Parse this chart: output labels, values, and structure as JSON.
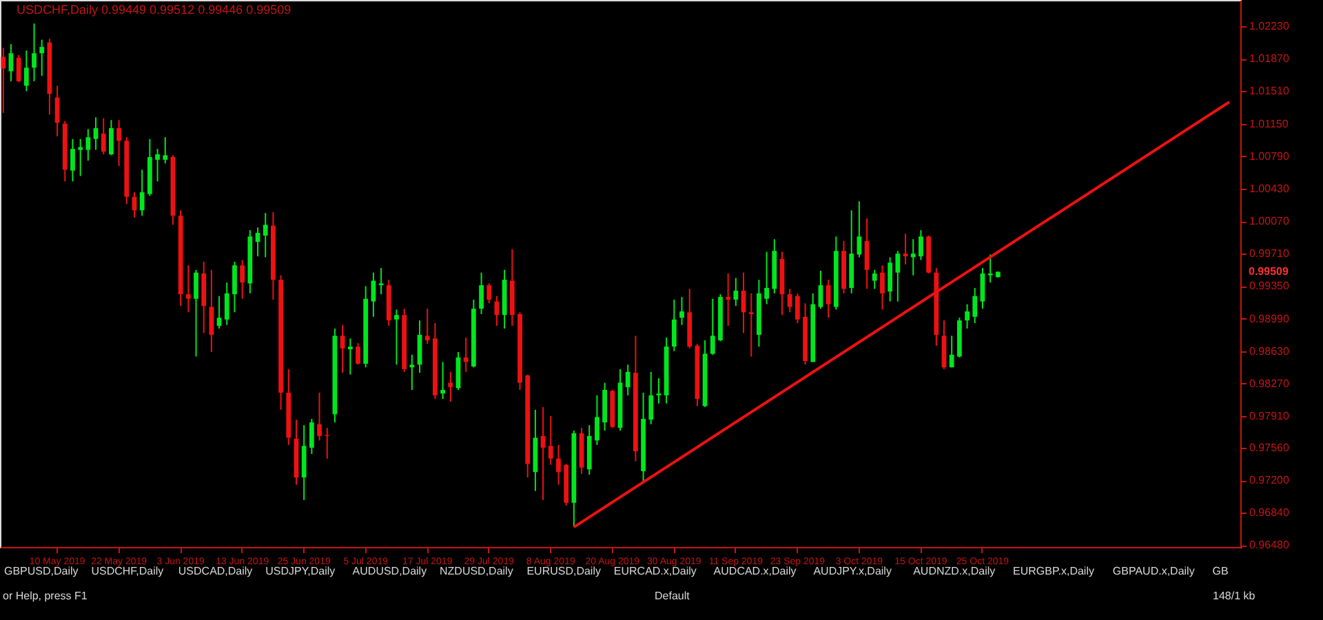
{
  "chart_data": {
    "type": "candlestick",
    "title": "USDCHF,Daily  0.99449 0.99512 0.99446 0.99509",
    "categories": [
      null,
      null,
      null,
      null,
      null,
      null,
      null,
      "10 May 2019",
      null,
      null,
      null,
      null,
      null,
      null,
      null,
      "22 May 2019",
      null,
      null,
      null,
      null,
      null,
      null,
      null,
      "3 Jun 2019",
      null,
      null,
      null,
      null,
      null,
      null,
      null,
      "13 Jun 2019",
      null,
      null,
      null,
      null,
      null,
      null,
      null,
      "25 Jun 2019",
      null,
      null,
      null,
      null,
      null,
      null,
      null,
      "5 Jul 2019",
      null,
      null,
      null,
      null,
      null,
      null,
      null,
      "17 Jul 2019",
      null,
      null,
      null,
      null,
      null,
      null,
      null,
      "29 Jul 2019",
      null,
      null,
      null,
      null,
      null,
      null,
      null,
      "8 Aug 2019",
      null,
      null,
      null,
      null,
      null,
      null,
      null,
      "20 Aug 2019",
      null,
      null,
      null,
      null,
      null,
      null,
      null,
      "30 Aug 2019",
      null,
      null,
      null,
      null,
      null,
      null,
      null,
      "11 Sep 2019",
      null,
      null,
      null,
      null,
      null,
      null,
      null,
      "23 Sep 2019",
      null,
      null,
      null,
      null,
      null,
      null,
      null,
      "3 Oct 2019",
      null,
      null,
      null,
      null,
      null,
      null,
      null,
      "15 Oct 2019",
      null,
      null,
      null,
      null,
      null,
      null,
      null,
      "25 Oct 2019",
      null,
      null,
      null,
      null,
      null,
      null,
      null,
      null,
      null,
      null,
      null,
      null,
      null,
      null,
      null,
      null,
      null,
      null,
      null,
      null,
      null,
      null,
      null,
      null,
      null,
      null,
      null,
      null,
      null,
      null,
      null,
      null,
      null
    ],
    "ohlc": [
      [
        1.0189,
        1.0199,
        1.0127,
        1.0176
      ],
      [
        1.0173,
        1.0203,
        1.0162,
        1.0193
      ],
      [
        1.0188,
        1.0191,
        1.0161,
        1.0162
      ],
      [
        1.0157,
        1.0196,
        1.0151,
        1.0177
      ],
      [
        1.0177,
        1.0226,
        1.0162,
        1.0193
      ],
      [
        1.0193,
        1.0208,
        1.0168,
        1.02
      ],
      [
        1.0205,
        1.0209,
        1.0125,
        1.0148
      ],
      [
        1.0144,
        1.0157,
        1.0101,
        1.0116
      ],
      [
        1.0115,
        1.0118,
        1.0051,
        1.0064
      ],
      [
        1.0063,
        1.0098,
        1.0051,
        1.0087
      ],
      [
        1.0086,
        1.0098,
        1.0057,
        1.0089
      ],
      [
        1.0086,
        1.0109,
        1.0074,
        1.01
      ],
      [
        1.0098,
        1.0122,
        1.0086,
        1.011
      ],
      [
        1.0104,
        1.0121,
        1.0081,
        1.0084
      ],
      [
        1.0081,
        1.0119,
        1.008,
        1.011
      ],
      [
        1.011,
        1.0119,
        1.0068,
        1.0096
      ],
      [
        1.0096,
        1.01,
        1.0026,
        1.0034
      ],
      [
        1.0034,
        1.0039,
        1.0011,
        1.0019
      ],
      [
        1.0019,
        1.0064,
        1.0013,
        1.0039
      ],
      [
        1.0037,
        1.0098,
        1.0035,
        1.0078
      ],
      [
        1.0075,
        1.0087,
        1.0051,
        1.0081
      ],
      [
        1.0075,
        1.01,
        1.0071,
        1.008
      ],
      [
        1.0078,
        1.008,
        1.0003,
        1.0013
      ],
      [
        1.0013,
        1.0019,
        0.9913,
        0.9926
      ],
      [
        0.9926,
        0.9958,
        0.9906,
        0.9921
      ],
      [
        0.9921,
        0.9953,
        0.9857,
        0.995
      ],
      [
        0.9949,
        0.9962,
        0.9883,
        0.9913
      ],
      [
        0.9912,
        0.9953,
        0.9862,
        0.9881
      ],
      [
        0.9891,
        0.9924,
        0.9888,
        0.99
      ],
      [
        0.9898,
        0.9939,
        0.9892,
        0.9927
      ],
      [
        0.9926,
        0.9962,
        0.9906,
        0.9958
      ],
      [
        0.9958,
        0.9964,
        0.9921,
        0.9939
      ],
      [
        0.9938,
        0.9997,
        0.9927,
        0.999
      ],
      [
        0.9984,
        1.0,
        0.9968,
        0.9994
      ],
      [
        0.9991,
        1.0016,
        0.9967,
        1.0003
      ],
      [
        1.0002,
        1.0017,
        0.992,
        0.9942
      ],
      [
        0.9942,
        0.9947,
        0.9798,
        0.9817
      ],
      [
        0.9817,
        0.9843,
        0.9759,
        0.9767
      ],
      [
        0.9766,
        0.9787,
        0.9715,
        0.9723
      ],
      [
        0.9723,
        0.9781,
        0.9698,
        0.9758
      ],
      [
        0.9756,
        0.9788,
        0.9749,
        0.9784
      ],
      [
        0.9782,
        0.9817,
        0.9764,
        0.9769
      ],
      [
        0.977,
        0.9778,
        0.9744,
        0.9769
      ],
      [
        0.9793,
        0.9888,
        0.9784,
        0.988
      ],
      [
        0.988,
        0.9892,
        0.9839,
        0.9866
      ],
      [
        0.9865,
        0.9877,
        0.9837,
        0.9868
      ],
      [
        0.9868,
        0.9872,
        0.9848,
        0.9849
      ],
      [
        0.9849,
        0.9935,
        0.9845,
        0.9921
      ],
      [
        0.9918,
        0.995,
        0.9901,
        0.9941
      ],
      [
        0.9936,
        0.9955,
        0.9926,
        0.9938
      ],
      [
        0.9936,
        0.9942,
        0.9891,
        0.9897
      ],
      [
        0.9898,
        0.9909,
        0.9848,
        0.9903
      ],
      [
        0.9903,
        0.991,
        0.984,
        0.9843
      ],
      [
        0.9845,
        0.9859,
        0.982,
        0.9848
      ],
      [
        0.9848,
        0.9897,
        0.9839,
        0.9881
      ],
      [
        0.988,
        0.991,
        0.9871,
        0.9875
      ],
      [
        0.9877,
        0.9894,
        0.981,
        0.9814
      ],
      [
        0.9816,
        0.9851,
        0.981,
        0.982
      ],
      [
        0.9828,
        0.984,
        0.9807,
        0.9823
      ],
      [
        0.9822,
        0.9862,
        0.982,
        0.9856
      ],
      [
        0.9856,
        0.9878,
        0.984,
        0.9851
      ],
      [
        0.9846,
        0.992,
        0.9845,
        0.991
      ],
      [
        0.991,
        0.995,
        0.9904,
        0.9936
      ],
      [
        0.9936,
        0.9938,
        0.9916,
        0.992
      ],
      [
        0.9918,
        0.9924,
        0.9891,
        0.9903
      ],
      [
        0.9903,
        0.9953,
        0.9888,
        0.9942
      ],
      [
        0.9941,
        0.9976,
        0.9891,
        0.9903
      ],
      [
        0.9904,
        0.9906,
        0.982,
        0.9828
      ],
      [
        0.9836,
        0.9837,
        0.9723,
        0.9738
      ],
      [
        0.9729,
        0.9798,
        0.9708,
        0.9767
      ],
      [
        0.9769,
        0.9801,
        0.9698,
        0.9756
      ],
      [
        0.9758,
        0.9791,
        0.9737,
        0.9744
      ],
      [
        0.9744,
        0.9759,
        0.9715,
        0.9729
      ],
      [
        0.9737,
        0.9738,
        0.9692,
        0.9695
      ],
      [
        0.9695,
        0.9775,
        0.9668,
        0.9772
      ],
      [
        0.9772,
        0.9778,
        0.9727,
        0.9734
      ],
      [
        0.9732,
        0.9781,
        0.9726,
        0.9769
      ],
      [
        0.9764,
        0.9814,
        0.9759,
        0.979
      ],
      [
        0.9784,
        0.9828,
        0.9775,
        0.982
      ],
      [
        0.9819,
        0.982,
        0.9778,
        0.9779
      ],
      [
        0.9778,
        0.9843,
        0.9775,
        0.9828
      ],
      [
        0.9823,
        0.9848,
        0.9814,
        0.984
      ],
      [
        0.9839,
        0.988,
        0.9741,
        0.9752
      ],
      [
        0.973,
        0.9817,
        0.9718,
        0.9788
      ],
      [
        0.9787,
        0.984,
        0.9782,
        0.9814
      ],
      [
        0.9814,
        0.9833,
        0.9805,
        0.9816
      ],
      [
        0.9814,
        0.9878,
        0.9805,
        0.9868
      ],
      [
        0.9868,
        0.992,
        0.9863,
        0.9898
      ],
      [
        0.99,
        0.9923,
        0.9892,
        0.9907
      ],
      [
        0.9906,
        0.9932,
        0.9866,
        0.9868
      ],
      [
        0.9869,
        0.9871,
        0.9802,
        0.981
      ],
      [
        0.9802,
        0.9875,
        0.9801,
        0.986
      ],
      [
        0.986,
        0.9921,
        0.9859,
        0.988
      ],
      [
        0.9875,
        0.9926,
        0.9874,
        0.9923
      ],
      [
        0.9923,
        0.9949,
        0.9891,
        0.992
      ],
      [
        0.992,
        0.9944,
        0.9913,
        0.993
      ],
      [
        0.993,
        0.995,
        0.9883,
        0.9906
      ],
      [
        0.9906,
        0.9927,
        0.9857,
        0.9904
      ],
      [
        0.9881,
        0.9942,
        0.9868,
        0.9927
      ],
      [
        0.9921,
        0.9973,
        0.9915,
        0.9933
      ],
      [
        0.9932,
        0.9987,
        0.9927,
        0.9974
      ],
      [
        0.9965,
        0.9973,
        0.9903,
        0.9926
      ],
      [
        0.9926,
        0.9932,
        0.9906,
        0.9912
      ],
      [
        0.9924,
        0.9927,
        0.9894,
        0.9898
      ],
      [
        0.9901,
        0.9916,
        0.9848,
        0.9852
      ],
      [
        0.9851,
        0.9927,
        0.9851,
        0.9915
      ],
      [
        0.9912,
        0.9952,
        0.991,
        0.9936
      ],
      [
        0.9936,
        0.9942,
        0.99,
        0.9915
      ],
      [
        0.9912,
        0.999,
        0.9909,
        0.9974
      ],
      [
        0.9974,
        0.9985,
        0.9927,
        0.9932
      ],
      [
        0.9933,
        1.0019,
        0.9927,
        0.9971
      ],
      [
        0.997,
        1.0029,
        0.9967,
        0.999
      ],
      [
        0.9985,
        1.001,
        0.9932,
        0.9953
      ],
      [
        0.9941,
        0.9953,
        0.9932,
        0.9949
      ],
      [
        0.995,
        0.9958,
        0.9909,
        0.9927
      ],
      [
        0.9929,
        0.9967,
        0.9918,
        0.9961
      ],
      [
        0.995,
        0.9974,
        0.9918,
        0.9971
      ],
      [
        0.9971,
        0.9993,
        0.9959,
        0.9968
      ],
      [
        0.9967,
        0.9987,
        0.9947,
        0.9971
      ],
      [
        0.9968,
        0.9997,
        0.9964,
        0.999
      ],
      [
        0.999,
        0.9991,
        0.9949,
        0.995
      ],
      [
        0.995,
        0.9955,
        0.9869,
        0.9881
      ],
      [
        0.988,
        0.9897,
        0.9843,
        0.9845
      ],
      [
        0.9845,
        0.988,
        0.9845,
        0.9859
      ],
      [
        0.9857,
        0.99,
        0.9856,
        0.9897
      ],
      [
        0.9897,
        0.9915,
        0.9888,
        0.9907
      ],
      [
        0.9901,
        0.9933,
        0.9894,
        0.9924
      ],
      [
        0.9918,
        0.9955,
        0.991,
        0.9949
      ],
      [
        0.9947,
        0.997,
        0.9939,
        0.9949
      ],
      [
        0.99449,
        0.99512,
        0.99446,
        0.99509
      ],
      null,
      null,
      null,
      null,
      null,
      null,
      null,
      null,
      null,
      null,
      null,
      null,
      null,
      null,
      null,
      null,
      null,
      null,
      null,
      null,
      null,
      null,
      null,
      null,
      null,
      null,
      null,
      null,
      null,
      null,
      null
    ],
    "colors": [
      "#ee1111",
      "#00e61e",
      "#ee1111",
      "#00e61e",
      "#00e61e",
      "#00e61e",
      "#ee1111",
      "#ee1111",
      "#ee1111",
      "#00e61e",
      "#00e61e",
      "#00e61e",
      "#00e61e",
      "#ee1111",
      "#00e61e",
      "#ee1111",
      "#ee1111",
      "#ee1111",
      "#00e61e",
      "#00e61e",
      "#00e61e",
      "#00e61e",
      "#ee1111",
      "#ee1111",
      "#ee1111",
      "#00e61e",
      "#ee1111",
      "#ee1111",
      "#00e61e",
      "#00e61e",
      "#00e61e",
      "#ee1111",
      "#00e61e",
      "#00e61e",
      "#00e61e",
      "#ee1111",
      "#ee1111",
      "#ee1111",
      "#ee1111",
      "#00e61e",
      "#00e61e",
      "#ee1111",
      "#ee1111",
      "#00e61e",
      "#ee1111",
      "#00e61e",
      "#ee1111",
      "#00e61e",
      "#00e61e",
      "#00e61e",
      "#ee1111",
      "#00e61e",
      "#ee1111",
      "#00e61e",
      "#00e61e",
      "#ee1111",
      "#ee1111",
      "#00e61e",
      "#ee1111",
      "#00e61e",
      "#ee1111",
      "#00e61e",
      "#00e61e",
      "#ee1111",
      "#ee1111",
      "#00e61e",
      "#ee1111",
      "#ee1111",
      "#ee1111",
      "#00e61e",
      "#ee1111",
      "#ee1111",
      "#ee1111",
      "#ee1111",
      "#00e61e",
      "#ee1111",
      "#00e61e",
      "#00e61e",
      "#00e61e",
      "#ee1111",
      "#00e61e",
      "#00e61e",
      "#ee1111",
      "#00e61e",
      "#00e61e",
      "#00e61e",
      "#00e61e",
      "#00e61e",
      "#00e61e",
      "#ee1111",
      "#ee1111",
      "#00e61e",
      "#00e61e",
      "#00e61e",
      "#ee1111",
      "#00e61e",
      "#ee1111",
      "#ee1111",
      "#00e61e",
      "#00e61e",
      "#00e61e",
      "#ee1111",
      "#ee1111",
      "#ee1111",
      "#ee1111",
      "#00e61e",
      "#00e61e",
      "#ee1111",
      "#00e61e",
      "#ee1111",
      "#00e61e",
      "#00e61e",
      "#ee1111",
      "#00e61e",
      "#ee1111",
      "#00e61e",
      "#00e61e",
      "#ee1111",
      "#00e61e",
      "#00e61e",
      "#ee1111",
      "#ee1111",
      "#ee1111",
      "#00e61e",
      "#00e61e",
      "#00e61e",
      "#00e61e",
      "#00e61e",
      "#00e61e",
      "#00e61e",
      null,
      null,
      null,
      null,
      null,
      null,
      null,
      null,
      null,
      null,
      null,
      null,
      null,
      null,
      null,
      null,
      null,
      null,
      null,
      null,
      null,
      null,
      null,
      null,
      null,
      null,
      null,
      null,
      null,
      null,
      null
    ],
    "series": [
      {
        "type": "line",
        "color": "#ee1111",
        "values": [
          null,
          null,
          null,
          null,
          null,
          null,
          null,
          null,
          null,
          null,
          null,
          null,
          null,
          null,
          null,
          null,
          null,
          null,
          null,
          null,
          null,
          null,
          null,
          null,
          null,
          null,
          null,
          null,
          null,
          null,
          null,
          null,
          null,
          null,
          null,
          null,
          null,
          null,
          null,
          null,
          null,
          null,
          null,
          null,
          null,
          null,
          null,
          null,
          null,
          null,
          null,
          null,
          null,
          null,
          null,
          null,
          null,
          null,
          null,
          null,
          null,
          null,
          null,
          null,
          null,
          null,
          null,
          null,
          null,
          null,
          null,
          null,
          null,
          null,
          0.9668,
          null,
          null,
          null,
          null,
          null,
          null,
          null,
          null,
          null,
          null,
          null,
          null,
          null,
          null,
          null,
          null,
          null,
          null,
          null,
          null,
          null,
          null,
          null,
          null,
          null,
          null,
          null,
          null,
          null,
          null,
          null,
          null,
          null,
          null,
          null,
          null,
          null,
          null,
          null,
          null,
          null,
          null,
          null,
          null,
          null,
          null,
          null,
          null,
          null,
          null,
          null,
          null,
          null,
          null,
          null,
          null,
          null,
          null,
          null,
          null,
          null,
          null,
          null,
          null,
          null,
          null,
          null,
          null,
          null,
          null,
          null,
          null,
          null,
          null,
          null,
          null,
          null,
          null,
          null,
          null,
          null,
          null,
          null,
          null,
          1.0139,
          null
        ]
      }
    ],
    "ylim": [
      0.9646,
      1.0252
    ],
    "yticks": [
      {
        "value": 1.0223,
        "label": "1.02230"
      },
      {
        "value": 1.0187,
        "label": "1.01870"
      },
      {
        "value": 1.0151,
        "label": "1.01510"
      },
      {
        "value": 1.0115,
        "label": "1.01150"
      },
      {
        "value": 1.0079,
        "label": "1.00790"
      },
      {
        "value": 1.0043,
        "label": "1.00430"
      },
      {
        "value": 1.0007,
        "label": "1.00070"
      },
      {
        "value": 0.9971,
        "label": "0.99710"
      },
      {
        "value": 0.9935,
        "label": "0.99350"
      },
      {
        "value": 0.9899,
        "label": "0.98990"
      },
      {
        "value": 0.9863,
        "label": "0.98630"
      },
      {
        "value": 0.9827,
        "label": "0.98270"
      },
      {
        "value": 0.9791,
        "label": "0.97910"
      },
      {
        "value": 0.9756,
        "label": "0.97560"
      },
      {
        "value": 0.972,
        "label": "0.97200"
      },
      {
        "value": 0.9684,
        "label": "0.96840"
      },
      {
        "value": 0.9648,
        "label": "0.96480"
      }
    ],
    "grid": false,
    "annotations": [
      "0.99509",
      "GBPUSD,Daily",
      "USDCHF,Daily",
      "USDCAD,Daily",
      "USDJPY,Daily",
      "AUDUSD,Daily",
      "NZDUSD,Daily",
      "EURUSD,Daily",
      "EURCAD.x,Daily",
      "AUDCAD.x,Daily",
      "AUDJPY.x,Daily",
      "AUDNZD.x,Daily",
      "EURGBP.x,Daily",
      "GBPAUD.x,Daily",
      "GB",
      "or Help, press F1",
      "Default",
      "148/1 kb"
    ]
  }
}
